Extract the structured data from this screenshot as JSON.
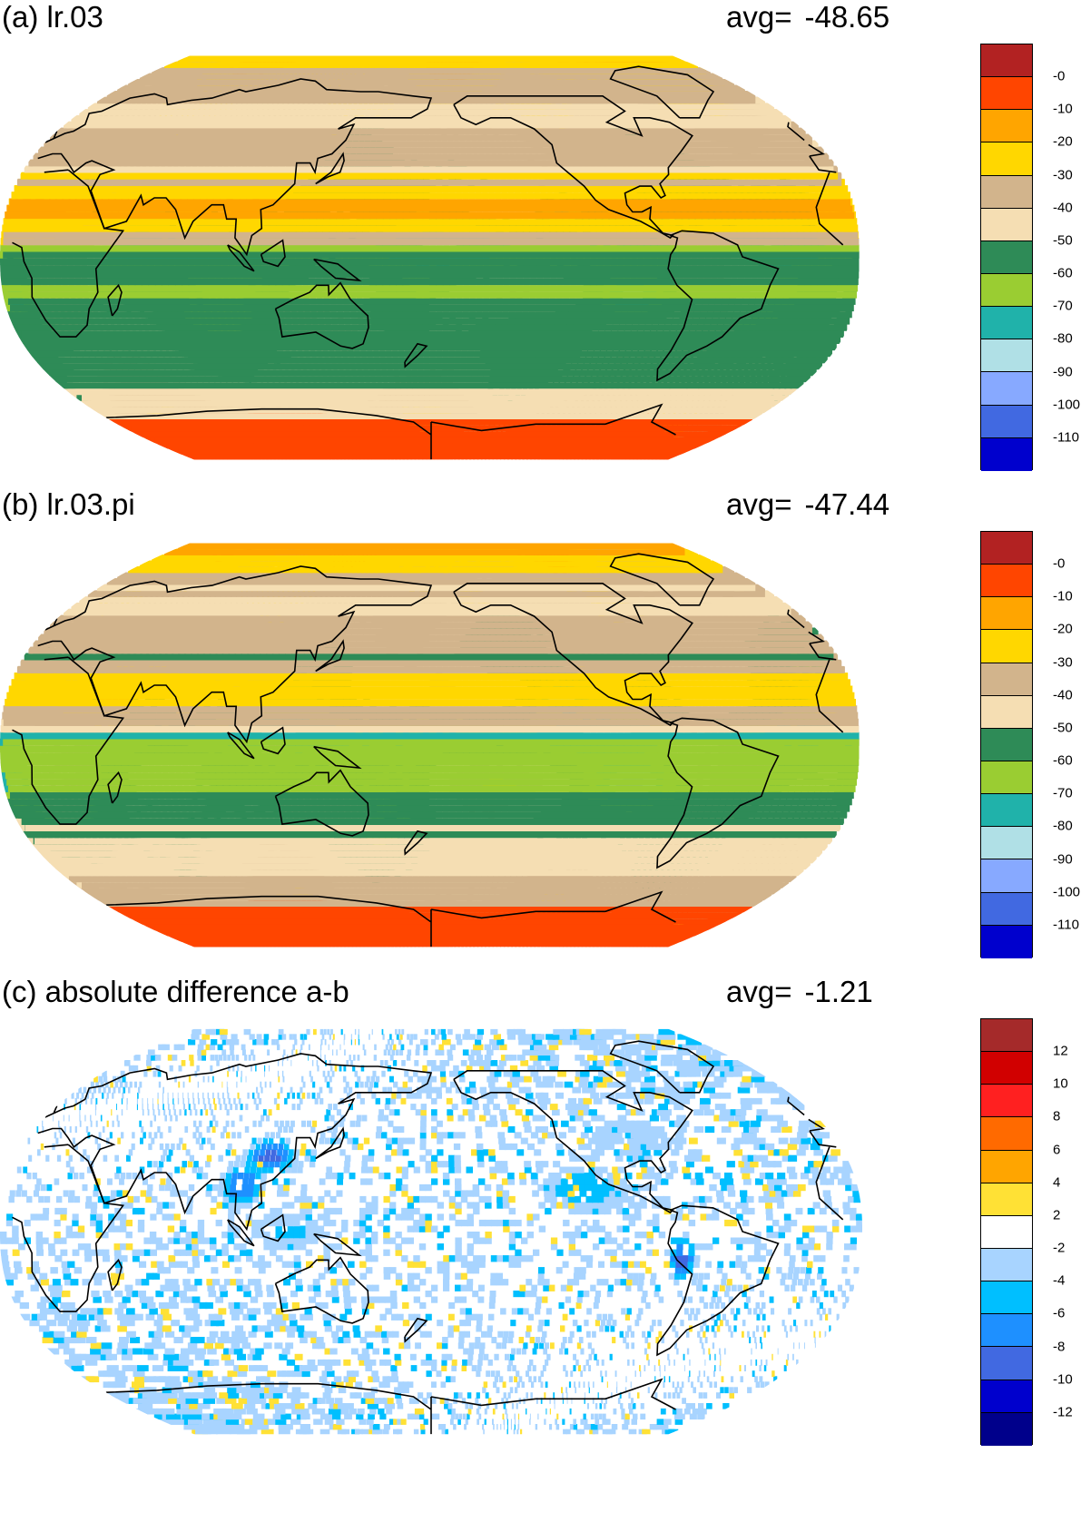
{
  "panels": [
    {
      "id": "a",
      "title": "(a) lr.03",
      "avg_label": "avg=",
      "avg_value": "-48.65",
      "kind": "absolute",
      "colorbar": {
        "colors": [
          "#b22222",
          "#ff4500",
          "#ffa500",
          "#ffd700",
          "#d2b48c",
          "#f5deb3",
          "#2e8b57",
          "#9acd32",
          "#20b2aa",
          "#b0e0e6",
          "#87a9ff",
          "#4169e1",
          "#0000cd"
        ],
        "labels": [
          "-0",
          "-10",
          "-20",
          "-30",
          "-40",
          "-50",
          "-60",
          "-70",
          "-80",
          "-90",
          "-100",
          "-110"
        ]
      }
    },
    {
      "id": "b",
      "title": "(b) lr.03.pi",
      "avg_label": "avg=",
      "avg_value": "-47.44",
      "kind": "absolute",
      "colorbar": {
        "colors": [
          "#b22222",
          "#ff4500",
          "#ffa500",
          "#ffd700",
          "#d2b48c",
          "#f5deb3",
          "#2e8b57",
          "#9acd32",
          "#20b2aa",
          "#b0e0e6",
          "#87a9ff",
          "#4169e1",
          "#0000cd"
        ],
        "labels": [
          "-0",
          "-10",
          "-20",
          "-30",
          "-40",
          "-50",
          "-60",
          "-70",
          "-80",
          "-90",
          "-100",
          "-110"
        ]
      }
    },
    {
      "id": "c",
      "title": "(c) absolute difference a-b",
      "avg_label": "avg=",
      "avg_value": "-1.21",
      "kind": "difference",
      "colorbar": {
        "colors": [
          "#a52a2a",
          "#d10000",
          "#ff2020",
          "#ff6a00",
          "#ffa500",
          "#ffe135",
          "#ffffff",
          "#a8d4ff",
          "#00bfff",
          "#1e90ff",
          "#4169e1",
          "#0000cd",
          "#00008b"
        ],
        "labels": [
          "12",
          "10",
          "8",
          "6",
          "4",
          "2",
          "-2",
          "-4",
          "-6",
          "-8",
          "-10",
          "-12"
        ]
      }
    }
  ]
}
